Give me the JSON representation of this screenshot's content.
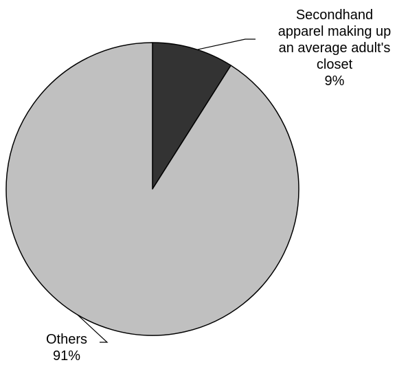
{
  "chart_data": {
    "type": "pie",
    "slices": [
      {
        "name": "Secondhand apparel making up an average adult's closet",
        "label_lines": [
          "Secondhand",
          "apparel making up",
          "an average adult's",
          "closet"
        ],
        "value": 9,
        "value_label": "9%",
        "color": "#333333"
      },
      {
        "name": "Others",
        "label_lines": [
          "Others"
        ],
        "value": 91,
        "value_label": "91%",
        "color": "#c0c0c0"
      }
    ],
    "start_angle": "12 o'clock",
    "direction": "clockwise",
    "legend": "none",
    "title": ""
  }
}
